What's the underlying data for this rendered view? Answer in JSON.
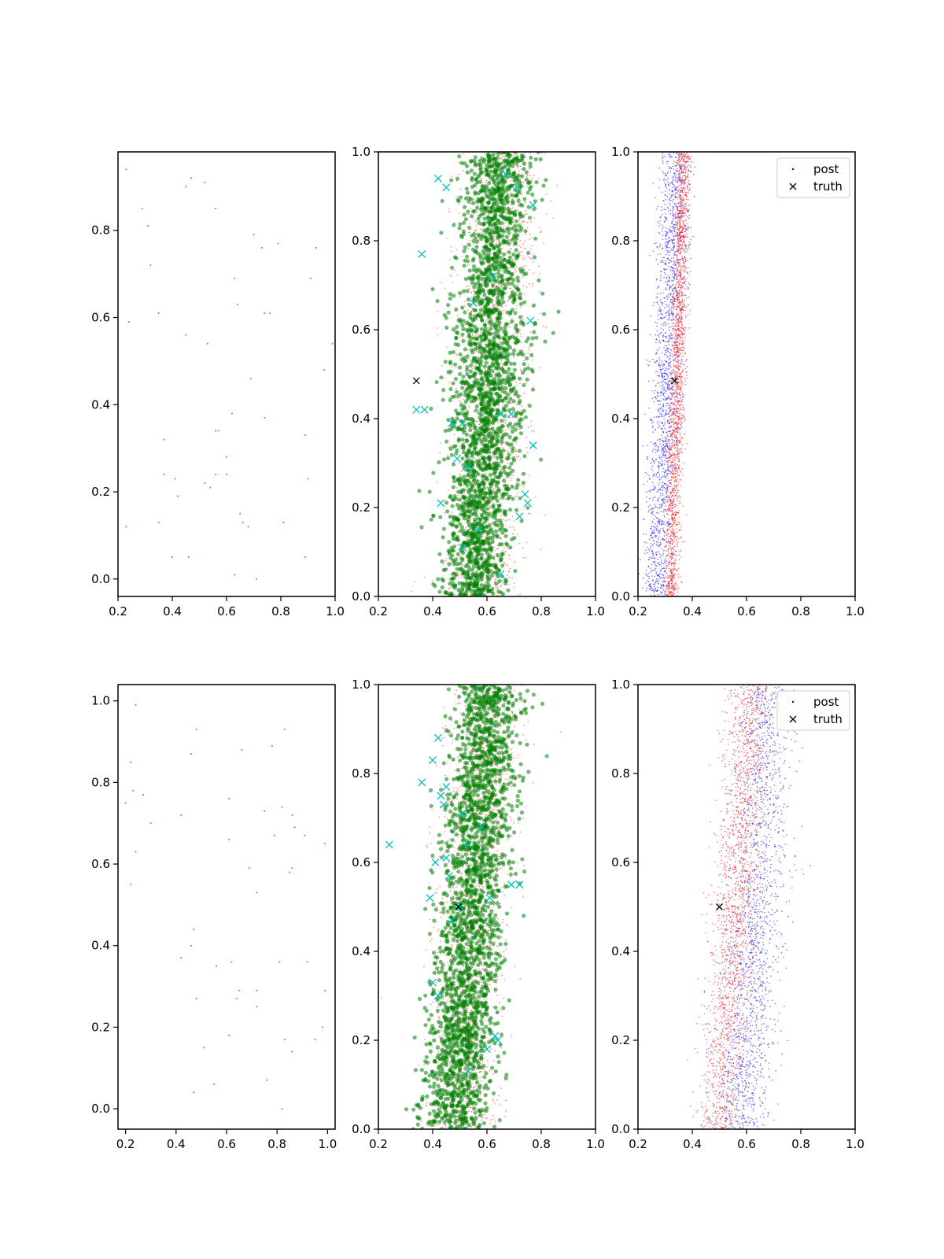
{
  "figure": {
    "colors": {
      "green": "#008000",
      "red": "#ff0000",
      "blue": "#0000ff",
      "cyan": "#00bfbf",
      "black": "#000000"
    },
    "legend": {
      "post_label": "post",
      "truth_label": "truth"
    }
  },
  "chart_data": [
    {
      "panel": "top-left",
      "type": "scatter",
      "title": "",
      "xlabel": "",
      "ylabel": "",
      "xlim": [
        0.2,
        1.0
      ],
      "ylim": [
        -0.04,
        0.98
      ],
      "xticks": [
        "0.2",
        "0.4",
        "0.6",
        "0.8",
        "1.0"
      ],
      "yticks": [
        "0.0",
        "0.2",
        "0.4",
        "0.6",
        "0.8"
      ],
      "grid": false,
      "series": [
        {
          "color": "green",
          "marker": "dot",
          "points": [
            [
              0.23,
              0.94
            ],
            [
              0.47,
              0.92
            ],
            [
              0.45,
              0.9
            ],
            [
              0.52,
              0.91
            ],
            [
              0.29,
              0.85
            ],
            [
              0.56,
              0.85
            ],
            [
              0.31,
              0.81
            ],
            [
              0.7,
              0.79
            ],
            [
              0.79,
              0.77
            ],
            [
              0.73,
              0.76
            ],
            [
              0.93,
              0.76
            ],
            [
              0.32,
              0.72
            ],
            [
              0.63,
              0.69
            ],
            [
              0.91,
              0.69
            ],
            [
              0.24,
              0.59
            ],
            [
              0.35,
              0.61
            ],
            [
              0.64,
              0.63
            ],
            [
              0.74,
              0.61
            ],
            [
              0.76,
              0.61
            ],
            [
              0.45,
              0.56
            ],
            [
              0.53,
              0.54
            ],
            [
              0.99,
              0.54
            ],
            [
              0.96,
              0.48
            ],
            [
              0.69,
              0.46
            ],
            [
              0.62,
              0.38
            ],
            [
              0.74,
              0.37
            ],
            [
              0.56,
              0.34
            ],
            [
              0.57,
              0.34
            ],
            [
              0.89,
              0.33
            ],
            [
              0.37,
              0.32
            ],
            [
              0.6,
              0.28
            ],
            [
              0.37,
              0.24
            ],
            [
              0.56,
              0.24
            ],
            [
              0.6,
              0.24
            ],
            [
              0.41,
              0.23
            ],
            [
              0.52,
              0.22
            ],
            [
              0.9,
              0.23
            ],
            [
              0.54,
              0.21
            ],
            [
              0.42,
              0.19
            ],
            [
              0.65,
              0.15
            ],
            [
              0.35,
              0.13
            ],
            [
              0.23,
              0.12
            ],
            [
              0.66,
              0.13
            ],
            [
              0.68,
              0.12
            ],
            [
              0.81,
              0.13
            ],
            [
              0.4,
              0.05
            ],
            [
              0.46,
              0.05
            ],
            [
              0.89,
              0.05
            ],
            [
              0.63,
              0.01
            ],
            [
              0.71,
              0.0
            ]
          ]
        }
      ]
    },
    {
      "panel": "top-middle",
      "type": "scatter",
      "title": "",
      "xlabel": "",
      "ylabel": "",
      "xlim": [
        0.2,
        1.0
      ],
      "ylim": [
        0.0,
        1.0
      ],
      "xticks": [
        "0.2",
        "0.4",
        "0.6",
        "0.8",
        "1.0"
      ],
      "yticks": [
        "0.0",
        "0.2",
        "0.4",
        "0.6",
        "0.8",
        "1.0"
      ],
      "grid": false,
      "cloud_green": {
        "x_center": [
          0.55,
          0.65
        ],
        "x_spread": 0.12,
        "count": 2400
      },
      "cloud_red": {
        "x_center": [
          0.57,
          0.66
        ],
        "x_spread": 0.13,
        "count": 1800
      },
      "cyan_x": [
        [
          0.42,
          0.94
        ],
        [
          0.45,
          0.92
        ],
        [
          0.67,
          0.95
        ],
        [
          0.77,
          0.88
        ],
        [
          0.36,
          0.77
        ],
        [
          0.71,
          0.92
        ],
        [
          0.62,
          0.72
        ],
        [
          0.55,
          0.66
        ],
        [
          0.76,
          0.62
        ],
        [
          0.34,
          0.42
        ],
        [
          0.37,
          0.42
        ],
        [
          0.47,
          0.39
        ],
        [
          0.51,
          0.39
        ],
        [
          0.65,
          0.41
        ],
        [
          0.69,
          0.41
        ],
        [
          0.77,
          0.34
        ],
        [
          0.49,
          0.31
        ],
        [
          0.53,
          0.29
        ],
        [
          0.43,
          0.21
        ],
        [
          0.74,
          0.23
        ],
        [
          0.75,
          0.21
        ],
        [
          0.72,
          0.18
        ],
        [
          0.57,
          0.15
        ],
        [
          0.51,
          0.11
        ],
        [
          0.65,
          0.05
        ]
      ],
      "truth": [
        0.34,
        0.485
      ]
    },
    {
      "panel": "top-right",
      "type": "scatter",
      "title": "",
      "xlabel": "",
      "ylabel": "",
      "xlim": [
        0.2,
        1.0
      ],
      "ylim": [
        0.0,
        1.0
      ],
      "xticks": [
        "0.2",
        "0.4",
        "0.6",
        "0.8",
        "1.0"
      ],
      "yticks": [
        "0.0",
        "0.2",
        "0.4",
        "0.6",
        "0.8",
        "1.0"
      ],
      "grid": false,
      "legend_position": "top-right",
      "cloud_blue": {
        "x_center": [
          0.27,
          0.34
        ],
        "x_spread": 0.05,
        "count": 1800
      },
      "cloud_red": {
        "x_center": [
          0.32,
          0.37
        ],
        "x_spread": 0.025,
        "count": 1800
      },
      "truth": [
        0.335,
        0.485
      ]
    },
    {
      "panel": "bottom-left",
      "type": "scatter",
      "title": "",
      "xlabel": "",
      "ylabel": "",
      "xlim": [
        0.17,
        1.03
      ],
      "ylim": [
        -0.05,
        1.04
      ],
      "xticks": [
        "0.2",
        "0.4",
        "0.6",
        "0.8",
        "1.0"
      ],
      "yticks": [
        "0.0",
        "0.2",
        "0.4",
        "0.6",
        "0.8",
        "1.0"
      ],
      "grid": false,
      "series": [
        {
          "color": "green",
          "marker": "dot",
          "points": [
            [
              0.24,
              0.99
            ],
            [
              0.48,
              0.93
            ],
            [
              0.83,
              0.93
            ],
            [
              0.66,
              0.88
            ],
            [
              0.78,
              0.89
            ],
            [
              0.46,
              0.87
            ],
            [
              0.22,
              0.85
            ],
            [
              0.23,
              0.78
            ],
            [
              0.27,
              0.77
            ],
            [
              0.61,
              0.76
            ],
            [
              0.2,
              0.75
            ],
            [
              0.82,
              0.74
            ],
            [
              0.75,
              0.73
            ],
            [
              0.42,
              0.72
            ],
            [
              0.86,
              0.72
            ],
            [
              0.3,
              0.7
            ],
            [
              0.87,
              0.69
            ],
            [
              0.61,
              0.66
            ],
            [
              0.79,
              0.67
            ],
            [
              0.91,
              0.67
            ],
            [
              0.24,
              0.63
            ],
            [
              0.99,
              0.65
            ],
            [
              0.86,
              0.59
            ],
            [
              0.85,
              0.58
            ],
            [
              0.69,
              0.59
            ],
            [
              0.22,
              0.55
            ],
            [
              0.72,
              0.53
            ],
            [
              0.47,
              0.44
            ],
            [
              0.46,
              0.4
            ],
            [
              0.42,
              0.37
            ],
            [
              0.56,
              0.35
            ],
            [
              0.62,
              0.36
            ],
            [
              0.81,
              0.36
            ],
            [
              0.92,
              0.36
            ],
            [
              0.65,
              0.29
            ],
            [
              0.72,
              0.29
            ],
            [
              0.99,
              0.29
            ],
            [
              0.48,
              0.27
            ],
            [
              0.64,
              0.27
            ],
            [
              0.72,
              0.25
            ],
            [
              0.98,
              0.2
            ],
            [
              0.61,
              0.18
            ],
            [
              0.83,
              0.17
            ],
            [
              0.95,
              0.17
            ],
            [
              0.51,
              0.15
            ],
            [
              0.86,
              0.14
            ],
            [
              0.76,
              0.07
            ],
            [
              0.55,
              0.06
            ],
            [
              0.47,
              0.04
            ],
            [
              0.82,
              0.0
            ]
          ]
        }
      ]
    },
    {
      "panel": "bottom-middle",
      "type": "scatter",
      "title": "",
      "xlabel": "",
      "ylabel": "",
      "xlim": [
        0.2,
        1.0
      ],
      "ylim": [
        0.0,
        1.0
      ],
      "xticks": [
        "0.2",
        "0.4",
        "0.6",
        "0.8",
        "1.0"
      ],
      "yticks": [
        "0.0",
        "0.2",
        "0.4",
        "0.6",
        "0.8",
        "1.0"
      ],
      "grid": false,
      "cloud_green": {
        "x_center": [
          0.48,
          0.61
        ],
        "x_spread": 0.11,
        "count": 2400
      },
      "cloud_red": {
        "x_center": [
          0.5,
          0.6
        ],
        "x_spread": 0.12,
        "count": 1800
      },
      "cyan_x": [
        [
          0.42,
          0.88
        ],
        [
          0.4,
          0.83
        ],
        [
          0.36,
          0.78
        ],
        [
          0.43,
          0.75
        ],
        [
          0.45,
          0.77
        ],
        [
          0.44,
          0.73
        ],
        [
          0.51,
          0.71
        ],
        [
          0.58,
          0.68
        ],
        [
          0.53,
          0.64
        ],
        [
          0.24,
          0.64
        ],
        [
          0.45,
          0.61
        ],
        [
          0.41,
          0.6
        ],
        [
          0.46,
          0.57
        ],
        [
          0.69,
          0.55
        ],
        [
          0.72,
          0.55
        ],
        [
          0.39,
          0.52
        ],
        [
          0.61,
          0.52
        ],
        [
          0.5,
          0.5
        ],
        [
          0.47,
          0.47
        ],
        [
          0.4,
          0.33
        ],
        [
          0.42,
          0.3
        ],
        [
          0.63,
          0.21
        ],
        [
          0.64,
          0.2
        ],
        [
          0.6,
          0.18
        ],
        [
          0.53,
          0.13
        ]
      ],
      "truth": [
        0.495,
        0.5
      ]
    },
    {
      "panel": "bottom-right",
      "type": "scatter",
      "title": "",
      "xlabel": "",
      "ylabel": "",
      "xlim": [
        0.2,
        1.0
      ],
      "ylim": [
        0.0,
        1.0
      ],
      "xticks": [
        "0.2",
        "0.4",
        "0.6",
        "0.8",
        "1.0"
      ],
      "yticks": [
        "0.0",
        "0.2",
        "0.4",
        "0.6",
        "0.8",
        "1.0"
      ],
      "grid": false,
      "legend_position": "top-right",
      "cloud_blue": {
        "x_center": [
          0.58,
          0.68
        ],
        "x_spread": 0.1,
        "count": 1800
      },
      "cloud_red": {
        "x_center": [
          0.5,
          0.62
        ],
        "x_spread": 0.08,
        "count": 1800
      },
      "truth": [
        0.5,
        0.5
      ]
    }
  ]
}
